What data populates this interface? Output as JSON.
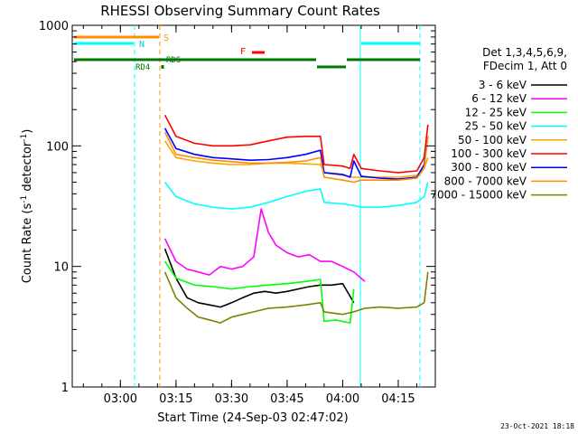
{
  "chart_data": {
    "type": "line",
    "title": "RHESSI Observing Summary Count Rates",
    "xlabel": "Start Time (24-Sep-03 02:47:02)",
    "ylabel_main": "Count Rate (s",
    "ylabel_sup": "-1",
    "ylabel_rest": " detector",
    "ylabel_sup2": "-1",
    "ylabel_close": ")",
    "y_scale": "log",
    "ylim": [
      1,
      1000
    ],
    "xlim": [
      "02:47",
      "04:25"
    ],
    "x_ticks": [
      "03:00",
      "03:15",
      "03:30",
      "03:45",
      "04:00",
      "04:15"
    ],
    "y_ticks": [
      "1",
      "10",
      "100",
      "1000"
    ],
    "legend_header": [
      "Det 1,3,4,5,6,9,",
      "FDecim 1, Att 0"
    ],
    "series": [
      {
        "name": "3 - 6 keV",
        "color": "#000000",
        "x": [
          "03:12",
          "03:15",
          "03:18",
          "03:21",
          "03:24",
          "03:27",
          "03:30",
          "03:33",
          "03:36",
          "03:39",
          "03:42",
          "03:45",
          "03:48",
          "03:51",
          "03:54",
          "03:57",
          "04:00",
          "04:03"
        ],
        "y": [
          14,
          8,
          5.5,
          5,
          4.8,
          4.6,
          5,
          5.5,
          6,
          6.2,
          6,
          6.2,
          6.5,
          6.8,
          7,
          7,
          7.2,
          5
        ]
      },
      {
        "name": "6 - 12 keV",
        "color": "#ff00ff",
        "x": [
          "03:12",
          "03:15",
          "03:18",
          "03:21",
          "03:24",
          "03:27",
          "03:30",
          "03:33",
          "03:36",
          "03:38",
          "03:40",
          "03:42",
          "03:45",
          "03:48",
          "03:51",
          "03:54",
          "03:57",
          "04:00",
          "04:03",
          "04:06"
        ],
        "y": [
          17,
          11,
          9.5,
          9,
          8.5,
          10,
          9.5,
          10,
          12,
          30,
          19,
          15,
          13,
          12,
          12.5,
          11,
          11,
          10,
          9,
          7.5
        ]
      },
      {
        "name": "12 - 25 keV",
        "color": "#00ff00",
        "x": [
          "03:12",
          "03:15",
          "03:20",
          "03:25",
          "03:30",
          "03:35",
          "03:40",
          "03:45",
          "03:50",
          "03:54",
          "03:55",
          "03:58",
          "04:00",
          "04:02",
          "04:03"
        ],
        "y": [
          11,
          8,
          7,
          6.8,
          6.5,
          6.8,
          7,
          7.2,
          7.5,
          7.8,
          3.5,
          3.6,
          3.5,
          3.4,
          6.5
        ]
      },
      {
        "name": "25 - 50 keV",
        "color": "#00ffff",
        "x": [
          "03:12",
          "03:15",
          "03:20",
          "03:25",
          "03:30",
          "03:35",
          "03:40",
          "03:45",
          "03:50",
          "03:54",
          "03:55",
          "04:00",
          "04:03",
          "04:05",
          "04:10",
          "04:15",
          "04:20",
          "04:22",
          "04:23"
        ],
        "y": [
          50,
          38,
          33,
          31,
          30,
          31,
          34,
          38,
          42,
          44,
          34,
          33,
          32,
          31,
          31,
          32,
          34,
          38,
          50
        ]
      },
      {
        "name": "50 - 100 keV",
        "color": "#ffa500",
        "x": [
          "03:12",
          "03:15",
          "03:20",
          "03:25",
          "03:30",
          "03:35",
          "03:40",
          "03:45",
          "03:50",
          "03:54",
          "03:55",
          "04:00",
          "04:03",
          "04:05",
          "04:10",
          "04:15",
          "04:20",
          "04:22",
          "04:23"
        ],
        "y": [
          110,
          80,
          75,
          72,
          70,
          70,
          72,
          72,
          71,
          70,
          60,
          57,
          55,
          55,
          55,
          55,
          57,
          65,
          80
        ]
      },
      {
        "name": "100 - 300 keV",
        "color": "#ff0000",
        "x": [
          "03:12",
          "03:15",
          "03:20",
          "03:25",
          "03:30",
          "03:35",
          "03:40",
          "03:45",
          "03:50",
          "03:54",
          "03:55",
          "04:00",
          "04:02",
          "04:03",
          "04:05",
          "04:10",
          "04:15",
          "04:20",
          "04:22",
          "04:23"
        ],
        "y": [
          180,
          120,
          105,
          100,
          100,
          102,
          110,
          118,
          120,
          120,
          70,
          68,
          65,
          85,
          65,
          62,
          60,
          62,
          80,
          150
        ]
      },
      {
        "name": "300 - 800 keV",
        "color": "#0000ff",
        "x": [
          "03:12",
          "03:15",
          "03:20",
          "03:25",
          "03:30",
          "03:35",
          "03:40",
          "03:45",
          "03:50",
          "03:54",
          "03:55",
          "04:00",
          "04:02",
          "04:03",
          "04:05",
          "04:10",
          "04:15",
          "04:20",
          "04:22",
          "04:23"
        ],
        "y": [
          140,
          95,
          85,
          80,
          78,
          76,
          77,
          80,
          85,
          92,
          60,
          58,
          55,
          75,
          56,
          54,
          53,
          55,
          70,
          120
        ]
      },
      {
        "name": "800 - 7000 keV",
        "color": "#ff8c00",
        "x": [
          "03:12",
          "03:15",
          "03:20",
          "03:25",
          "03:30",
          "03:35",
          "03:40",
          "03:45",
          "03:50",
          "03:54",
          "03:55",
          "04:00",
          "04:03",
          "04:05",
          "04:10",
          "04:15",
          "04:20",
          "04:22",
          "04:23"
        ],
        "y": [
          130,
          85,
          80,
          76,
          74,
          72,
          72,
          73,
          75,
          80,
          55,
          52,
          50,
          52,
          52,
          52,
          54,
          65,
          120
        ]
      },
      {
        "name": "7000 - 15000 keV",
        "color": "#808000",
        "x": [
          "03:12",
          "03:15",
          "03:18",
          "03:21",
          "03:24",
          "03:27",
          "03:30",
          "03:33",
          "03:36",
          "03:40",
          "03:45",
          "03:50",
          "03:54",
          "03:55",
          "04:00",
          "04:03",
          "04:06",
          "04:10",
          "04:15",
          "04:20",
          "04:22",
          "04:23"
        ],
        "y": [
          9,
          5.5,
          4.5,
          3.8,
          3.6,
          3.4,
          3.8,
          4,
          4.2,
          4.5,
          4.6,
          4.8,
          5,
          4.2,
          4,
          4.2,
          4.5,
          4.6,
          4.5,
          4.6,
          5,
          9
        ]
      }
    ],
    "markers": {
      "S_label": "S",
      "N_label": "N",
      "F_label": "F",
      "RD4_label": "RD4",
      "RDS_label": "RDS"
    },
    "footer_date": "23-Oct-2021 18:18"
  }
}
